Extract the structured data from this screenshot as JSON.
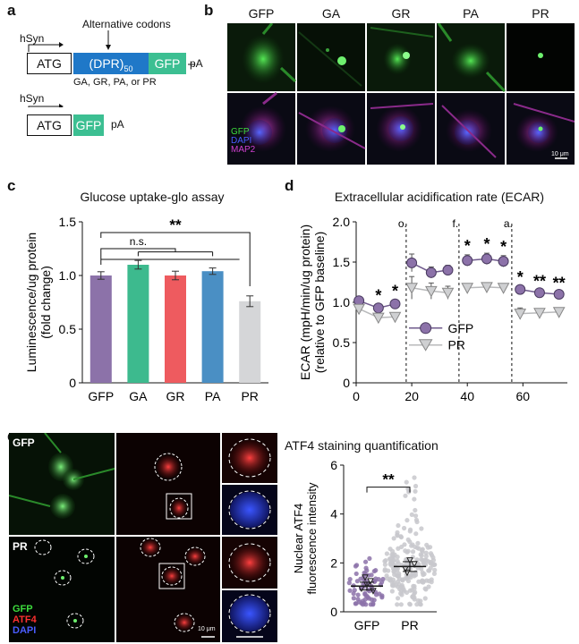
{
  "panels": {
    "a": "a",
    "b": "b",
    "c": "c",
    "d": "d",
    "e": "e"
  },
  "panel_a": {
    "construct1": {
      "promoter": "hSyn",
      "atg": "ATG",
      "dpr": "(DPR)",
      "dpr_sub": "50",
      "gfp": "GFP",
      "pa": "pA",
      "annotation": "Alternative codons",
      "caption": "GA, GR, PA, or PR"
    },
    "construct2": {
      "promoter": "hSyn",
      "atg": "ATG",
      "gfp": "GFP",
      "pa": "pA"
    },
    "colors": {
      "dpr": "#1f78c8",
      "gfp": "#3cbf92"
    }
  },
  "panel_b": {
    "columns": [
      "GFP",
      "GA",
      "GR",
      "PA",
      "PR"
    ],
    "channel_labels": [
      "GFP",
      "DAPI",
      "MAP2"
    ],
    "channel_colors": [
      "#3ddc3d",
      "#4a5cff",
      "#d040d0"
    ],
    "scalebar": "10 μm"
  },
  "panel_e_micro": {
    "rows": [
      "GFP",
      "PR"
    ],
    "channel_labels": [
      "GFP",
      "ATF4",
      "DAPI"
    ],
    "channel_colors": [
      "#3ddc3d",
      "#ff3030",
      "#4a5cff"
    ],
    "scalebar": "10 μm"
  },
  "chart_data": [
    {
      "id": "c",
      "type": "bar",
      "title": "Glucose uptake-glo assay",
      "ylabel": "Luminescence/ug protein (fold change)",
      "ylabel_lines": [
        "Luminescence/ug protein",
        "(fold change)"
      ],
      "categories": [
        "GFP",
        "GA",
        "GR",
        "PA",
        "PR"
      ],
      "values": [
        1.0,
        1.1,
        1.0,
        1.04,
        0.76
      ],
      "errors": [
        0.035,
        0.04,
        0.04,
        0.03,
        0.05
      ],
      "colors": [
        "#8c72a9",
        "#3dba8e",
        "#ee5b5f",
        "#4a8fc4",
        "#d5d6d8"
      ],
      "ylim": [
        0,
        1.5
      ],
      "yticks": [
        0,
        0.5,
        1.0,
        1.5
      ],
      "ytick_labels": [
        "0",
        "0.5",
        "1.0",
        "1.5"
      ],
      "annotations": {
        "ns": "n.s.",
        "sig": "**"
      }
    },
    {
      "id": "d",
      "type": "line",
      "title": "Extracellular acidification rate (ECAR)",
      "ylabel": "ECAR (mpH/min/ug protein) (relative to GFP baseline)",
      "ylabel_lines": [
        "ECAR (mpH/min/ug protein)",
        "(relative to GFP baseline)"
      ],
      "x": [
        1,
        8,
        14,
        20,
        27,
        33,
        40,
        47,
        53,
        59,
        66,
        73
      ],
      "series": [
        {
          "name": "GFP",
          "values": [
            1.02,
            0.93,
            0.98,
            1.49,
            1.37,
            1.4,
            1.52,
            1.54,
            1.51,
            1.16,
            1.12,
            1.1
          ],
          "errors": [
            0.04,
            0.04,
            0.05,
            0.11,
            0.07,
            0.06,
            0.07,
            0.07,
            0.07,
            0.04,
            0.03,
            0.03
          ],
          "color": "#8c72a9",
          "marker": "circle"
        },
        {
          "name": "PR",
          "values": [
            0.92,
            0.81,
            0.82,
            1.18,
            1.14,
            1.12,
            1.18,
            1.19,
            1.18,
            0.86,
            0.87,
            0.88
          ],
          "errors": [
            0.04,
            0.04,
            0.05,
            0.14,
            0.1,
            0.08,
            0.05,
            0.05,
            0.05,
            0.07,
            0.04,
            0.03
          ],
          "color": "#cfd0d2",
          "marker": "triangle"
        }
      ],
      "xlim": [
        0,
        76
      ],
      "xticks": [
        0,
        20,
        40,
        60
      ],
      "xtick_labels": [
        "0",
        "20",
        "40",
        "60"
      ],
      "ylim": [
        0,
        2.0
      ],
      "yticks": [
        0,
        0.5,
        1.0,
        1.5,
        2.0
      ],
      "ytick_labels": [
        "0",
        "0.5",
        "1.0",
        "1.5",
        "2.0"
      ],
      "injections": [
        {
          "x": 18,
          "label": "o."
        },
        {
          "x": 37,
          "label": "f."
        },
        {
          "x": 56,
          "label": "a."
        }
      ],
      "sig_marks": [
        {
          "x": 8,
          "label": "*"
        },
        {
          "x": 14,
          "label": "*"
        },
        {
          "x": 40,
          "label": "*"
        },
        {
          "x": 47,
          "label": "*"
        },
        {
          "x": 53,
          "label": "*"
        },
        {
          "x": 59,
          "label": "*"
        },
        {
          "x": 66,
          "label": "**"
        },
        {
          "x": 73,
          "label": "**"
        }
      ]
    },
    {
      "id": "e",
      "type": "scatter",
      "title": "ATF4 staining quantification",
      "ylabel": "Nuclear ATF4 fluorescence intensity",
      "ylabel_lines": [
        "Nuclear ATF4",
        "fluorescence intensity"
      ],
      "categories": [
        "GFP",
        "PR"
      ],
      "means": [
        1.05,
        1.85
      ],
      "sem": [
        0.08,
        0.1
      ],
      "colors": [
        "#8c72a9",
        "#c8c8cc"
      ],
      "ylim": [
        0,
        6
      ],
      "yticks": [
        0,
        2,
        4,
        6
      ],
      "ytick_labels": [
        "0",
        "2",
        "4",
        "6"
      ],
      "annotations": {
        "sig": "**"
      }
    }
  ]
}
